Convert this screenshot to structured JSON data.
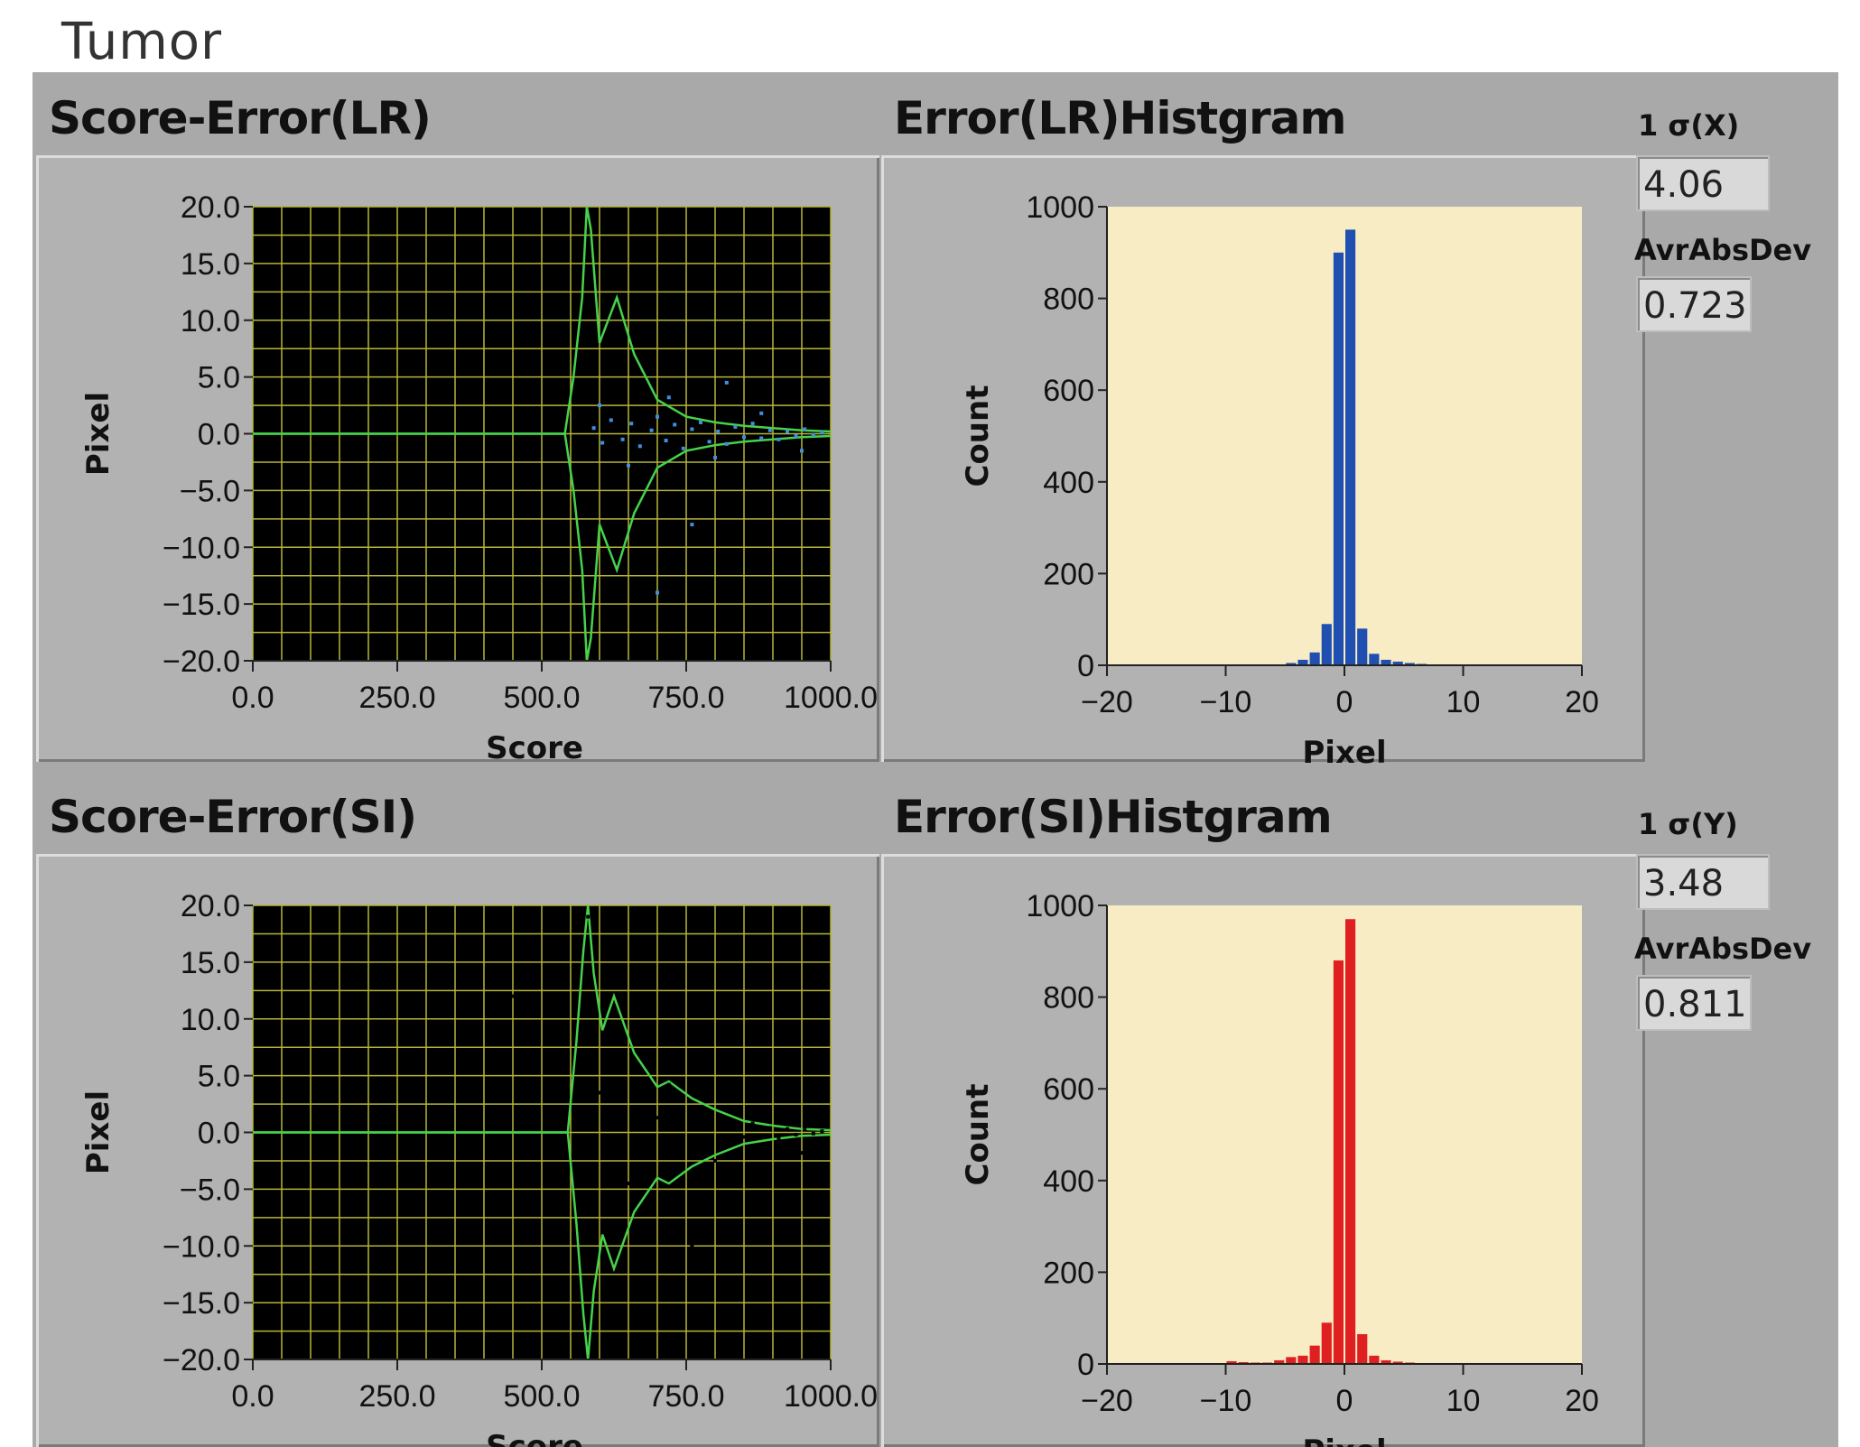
{
  "page_title": "Tumor",
  "panels": {
    "score_error_lr": {
      "title": "Score-Error(LR)"
    },
    "hist_lr": {
      "title": "Error(LR)Histgram"
    },
    "score_error_si": {
      "title": "Score-Error(SI)"
    },
    "hist_si": {
      "title": "Error(SI)Histgram"
    }
  },
  "side": {
    "sigma_x_label": "1 σ(X)",
    "sigma_x_value": "4.06",
    "avr_lr_label": "AvrAbsDev",
    "avr_lr_value": "0.723",
    "sigma_y_label": "1 σ(Y)",
    "sigma_y_value": "3.48",
    "avr_si_label": "AvrAbsDev",
    "avr_si_value": "0.811"
  },
  "colors": {
    "scatter_bg": "#000000",
    "grid": "#b5b53a",
    "envelope": "#46d24a",
    "lr_points": "#3f8fe0",
    "si_points": "#e83030",
    "hist_bg": "#f8ecc4",
    "hist_lr_bar": "#1f4fb0",
    "hist_si_bar": "#e02020"
  },
  "chart_data": [
    {
      "type": "scatter",
      "title": "Score-Error(LR)",
      "xlabel": "Score",
      "ylabel": "Pixel",
      "xlim": [
        0,
        1000
      ],
      "ylim": [
        -20,
        20
      ],
      "x_ticks": [
        "0.0",
        "250.0",
        "500.0",
        "750.0",
        "1000.0"
      ],
      "y_ticks": [
        "20.0",
        "15.0",
        "10.0",
        "5.0",
        "0.0",
        "-5.0",
        "-10.0",
        "-15.0",
        "-20.0"
      ],
      "grid": true,
      "series": [
        {
          "role": "upper_envelope",
          "x": [
            0,
            540,
            555,
            570,
            578,
            585,
            600,
            630,
            660,
            700,
            750,
            800,
            850,
            900,
            950,
            1000
          ],
          "y": [
            0,
            0,
            5,
            12,
            20,
            18,
            8,
            12,
            7,
            3,
            1.5,
            1,
            0.7,
            0.5,
            0.3,
            0.2
          ]
        },
        {
          "role": "lower_envelope",
          "x": [
            0,
            540,
            555,
            570,
            578,
            585,
            600,
            630,
            660,
            700,
            750,
            800,
            850,
            900,
            950,
            1000
          ],
          "y": [
            0,
            0,
            -5,
            -12,
            -20,
            -18,
            -8,
            -12,
            -7,
            -3,
            -1.5,
            -1,
            -0.7,
            -0.5,
            -0.3,
            -0.2
          ]
        },
        {
          "role": "points",
          "x": [
            590,
            605,
            620,
            640,
            655,
            670,
            690,
            700,
            715,
            730,
            745,
            760,
            775,
            790,
            805,
            820,
            835,
            850,
            865,
            880,
            895,
            910,
            925,
            940,
            955,
            970,
            985,
            600,
            650,
            720,
            800,
            880,
            950,
            760,
            700,
            820
          ],
          "y": [
            0.5,
            -0.8,
            1.2,
            -0.5,
            0.9,
            -1.1,
            0.3,
            1.5,
            -0.6,
            0.8,
            -1.3,
            0.4,
            1.0,
            -0.7,
            0.2,
            -0.9,
            0.6,
            -0.3,
            0.9,
            -0.4,
            0.3,
            -0.5,
            0.2,
            -0.2,
            0.4,
            -0.1,
            0.1,
            2.5,
            -2.8,
            3.2,
            -2.1,
            1.8,
            -1.5,
            -8.0,
            -14.0,
            4.5
          ]
        }
      ]
    },
    {
      "type": "bar",
      "title": "Error(LR)Histgram",
      "xlabel": "Pixel",
      "ylabel": "Count",
      "xlim": [
        -20,
        20
      ],
      "ylim": [
        0,
        1000
      ],
      "x_ticks": [
        "-20",
        "-10",
        "0",
        "10",
        "20"
      ],
      "y_ticks": [
        "1000",
        "800",
        "600",
        "400",
        "200",
        "0"
      ],
      "x": [
        -20,
        -19,
        -18,
        -17,
        -16,
        -15,
        -14,
        -13,
        -12,
        -11,
        -10,
        -9,
        -8,
        -7,
        -6,
        -5,
        -4,
        -3,
        -2,
        -1,
        0,
        1,
        2,
        3,
        4,
        5,
        6,
        7,
        8,
        9,
        10,
        11,
        12,
        13,
        14,
        15,
        16,
        17,
        18,
        19
      ],
      "values": [
        2,
        2,
        2,
        2,
        2,
        2,
        2,
        2,
        2,
        2,
        2,
        2,
        2,
        2,
        2,
        5,
        12,
        28,
        90,
        900,
        950,
        80,
        25,
        12,
        8,
        5,
        3,
        2,
        2,
        2,
        2,
        2,
        2,
        2,
        2,
        2,
        2,
        2,
        2,
        2
      ]
    },
    {
      "type": "scatter",
      "title": "Score-Error(SI)",
      "xlabel": "Score",
      "ylabel": "Pixel",
      "xlim": [
        0,
        1000
      ],
      "ylim": [
        -20,
        20
      ],
      "x_ticks": [
        "0.0",
        "250.0",
        "500.0",
        "750.0",
        "1000.0"
      ],
      "y_ticks": [
        "20.0",
        "15.0",
        "10.0",
        "5.0",
        "0.0",
        "-5.0",
        "-10.0",
        "-15.0",
        "-20.0"
      ],
      "grid": true,
      "series": [
        {
          "role": "upper_envelope",
          "x": [
            0,
            545,
            560,
            572,
            580,
            590,
            605,
            625,
            660,
            700,
            720,
            760,
            800,
            850,
            900,
            950,
            1000
          ],
          "y": [
            0,
            0,
            8,
            16,
            20,
            14,
            9,
            12,
            7,
            4,
            4.5,
            3,
            2,
            1,
            0.6,
            0.3,
            0.2
          ]
        },
        {
          "role": "lower_envelope",
          "x": [
            0,
            545,
            560,
            572,
            580,
            590,
            605,
            625,
            660,
            700,
            720,
            760,
            800,
            850,
            900,
            950,
            1000
          ],
          "y": [
            0,
            0,
            -8,
            -16,
            -20,
            -14,
            -9,
            -12,
            -7,
            -4,
            -4.5,
            -3,
            -2,
            -1,
            -0.6,
            -0.3,
            -0.2
          ]
        },
        {
          "role": "points",
          "x": [
            590,
            605,
            620,
            640,
            655,
            670,
            690,
            700,
            715,
            730,
            745,
            760,
            775,
            790,
            805,
            820,
            835,
            850,
            865,
            880,
            895,
            910,
            925,
            940,
            955,
            970,
            985,
            600,
            650,
            720,
            800,
            880,
            950,
            450,
            580,
            620,
            760
          ],
          "y": [
            0.4,
            -0.7,
            1.0,
            -0.6,
            0.8,
            -1.0,
            0.5,
            1.3,
            -0.8,
            0.7,
            -1.1,
            0.3,
            0.9,
            -0.6,
            0.3,
            -0.8,
            0.5,
            -0.4,
            0.8,
            -0.3,
            0.4,
            -0.5,
            0.3,
            -0.2,
            0.3,
            -0.1,
            0.1,
            3.5,
            -4.5,
            4.2,
            -2.5,
            2.2,
            -1.8,
            12.0,
            19.0,
            -9.0,
            -10.0
          ]
        }
      ]
    },
    {
      "type": "bar",
      "title": "Error(SI)Histgram",
      "xlabel": "Pixel",
      "ylabel": "Count",
      "xlim": [
        -20,
        20
      ],
      "ylim": [
        0,
        1000
      ],
      "x_ticks": [
        "-20",
        "-10",
        "0",
        "10",
        "20"
      ],
      "y_ticks": [
        "1000",
        "800",
        "600",
        "400",
        "200",
        "0"
      ],
      "x": [
        -20,
        -19,
        -18,
        -17,
        -16,
        -15,
        -14,
        -13,
        -12,
        -11,
        -10,
        -9,
        -8,
        -7,
        -6,
        -5,
        -4,
        -3,
        -2,
        -1,
        0,
        1,
        2,
        3,
        4,
        5,
        6,
        7,
        8,
        9,
        10,
        11,
        12,
        13,
        14,
        15,
        16,
        17,
        18,
        19
      ],
      "values": [
        2,
        2,
        2,
        2,
        2,
        2,
        2,
        2,
        2,
        2,
        6,
        4,
        3,
        3,
        8,
        15,
        18,
        40,
        90,
        880,
        970,
        65,
        18,
        8,
        5,
        3,
        2,
        2,
        2,
        2,
        2,
        2,
        2,
        2,
        2,
        2,
        2,
        2,
        2,
        2
      ]
    }
  ]
}
